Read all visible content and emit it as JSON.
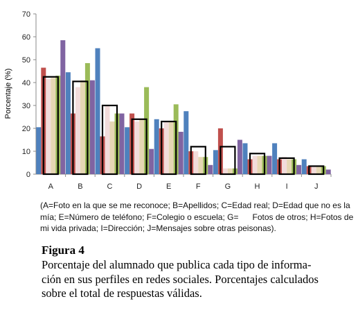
{
  "chart_data": {
    "type": "bar",
    "ylabel": "Porcentaje (%)",
    "ylim": [
      0,
      70
    ],
    "yticks": [
      0,
      10,
      20,
      30,
      40,
      50,
      60,
      70
    ],
    "categories": [
      "A",
      "B",
      "C",
      "D",
      "E",
      "F",
      "G",
      "H",
      "I",
      "J"
    ],
    "series": [
      {
        "color": "#4f81bd",
        "values": [
          20.5,
          44.5,
          55,
          20.5,
          24,
          27.5,
          10.5,
          13.5,
          13.5,
          6.5
        ]
      },
      {
        "color": "#c0504d",
        "values": [
          46.5,
          26.5,
          16.5,
          26.5,
          20,
          10,
          20,
          6.5,
          6.5,
          3.5
        ]
      },
      {
        "color": "#f2dcdb",
        "values": [
          41.5,
          38,
          30,
          23,
          23,
          10,
          2.5,
          8,
          7.5,
          3.5
        ]
      },
      {
        "color": "#e6d7b4",
        "values": [
          42,
          41,
          23,
          24,
          23,
          7.5,
          2.5,
          8,
          6.5,
          3.5
        ]
      },
      {
        "color": "#9bbb59",
        "values": [
          43,
          48.5,
          26.5,
          38,
          30.5,
          7.5,
          2.5,
          8,
          6.5,
          3.5
        ]
      },
      {
        "color": "#8064a2",
        "values": [
          58.5,
          41,
          26.5,
          11,
          18.5,
          4,
          15,
          8,
          4,
          2
        ]
      }
    ],
    "totals": [
      42.5,
      40.5,
      30,
      24,
      23,
      12,
      12,
      9,
      7,
      3.5
    ],
    "grid": false
  },
  "legend_note": "(A=Foto en la que se me reconoce; B=Apellidos; C=Edad real; D=Edad que no es la mía; E=Número de teléfono; F=Colegio o escuela; G=      Fotos de otros; H=Fotos de mi vida privada; I=Dirección; J=Mensajes sobre otras peisonas).",
  "figure": {
    "title": "Figura 4",
    "caption_lines": [
      "Porcentaje del alumnado que publica cada tipo de informa-",
      "ción en sus perfiles en redes sociales. Porcentajes calculados",
      "sobre el total de respuestas válidas."
    ]
  }
}
